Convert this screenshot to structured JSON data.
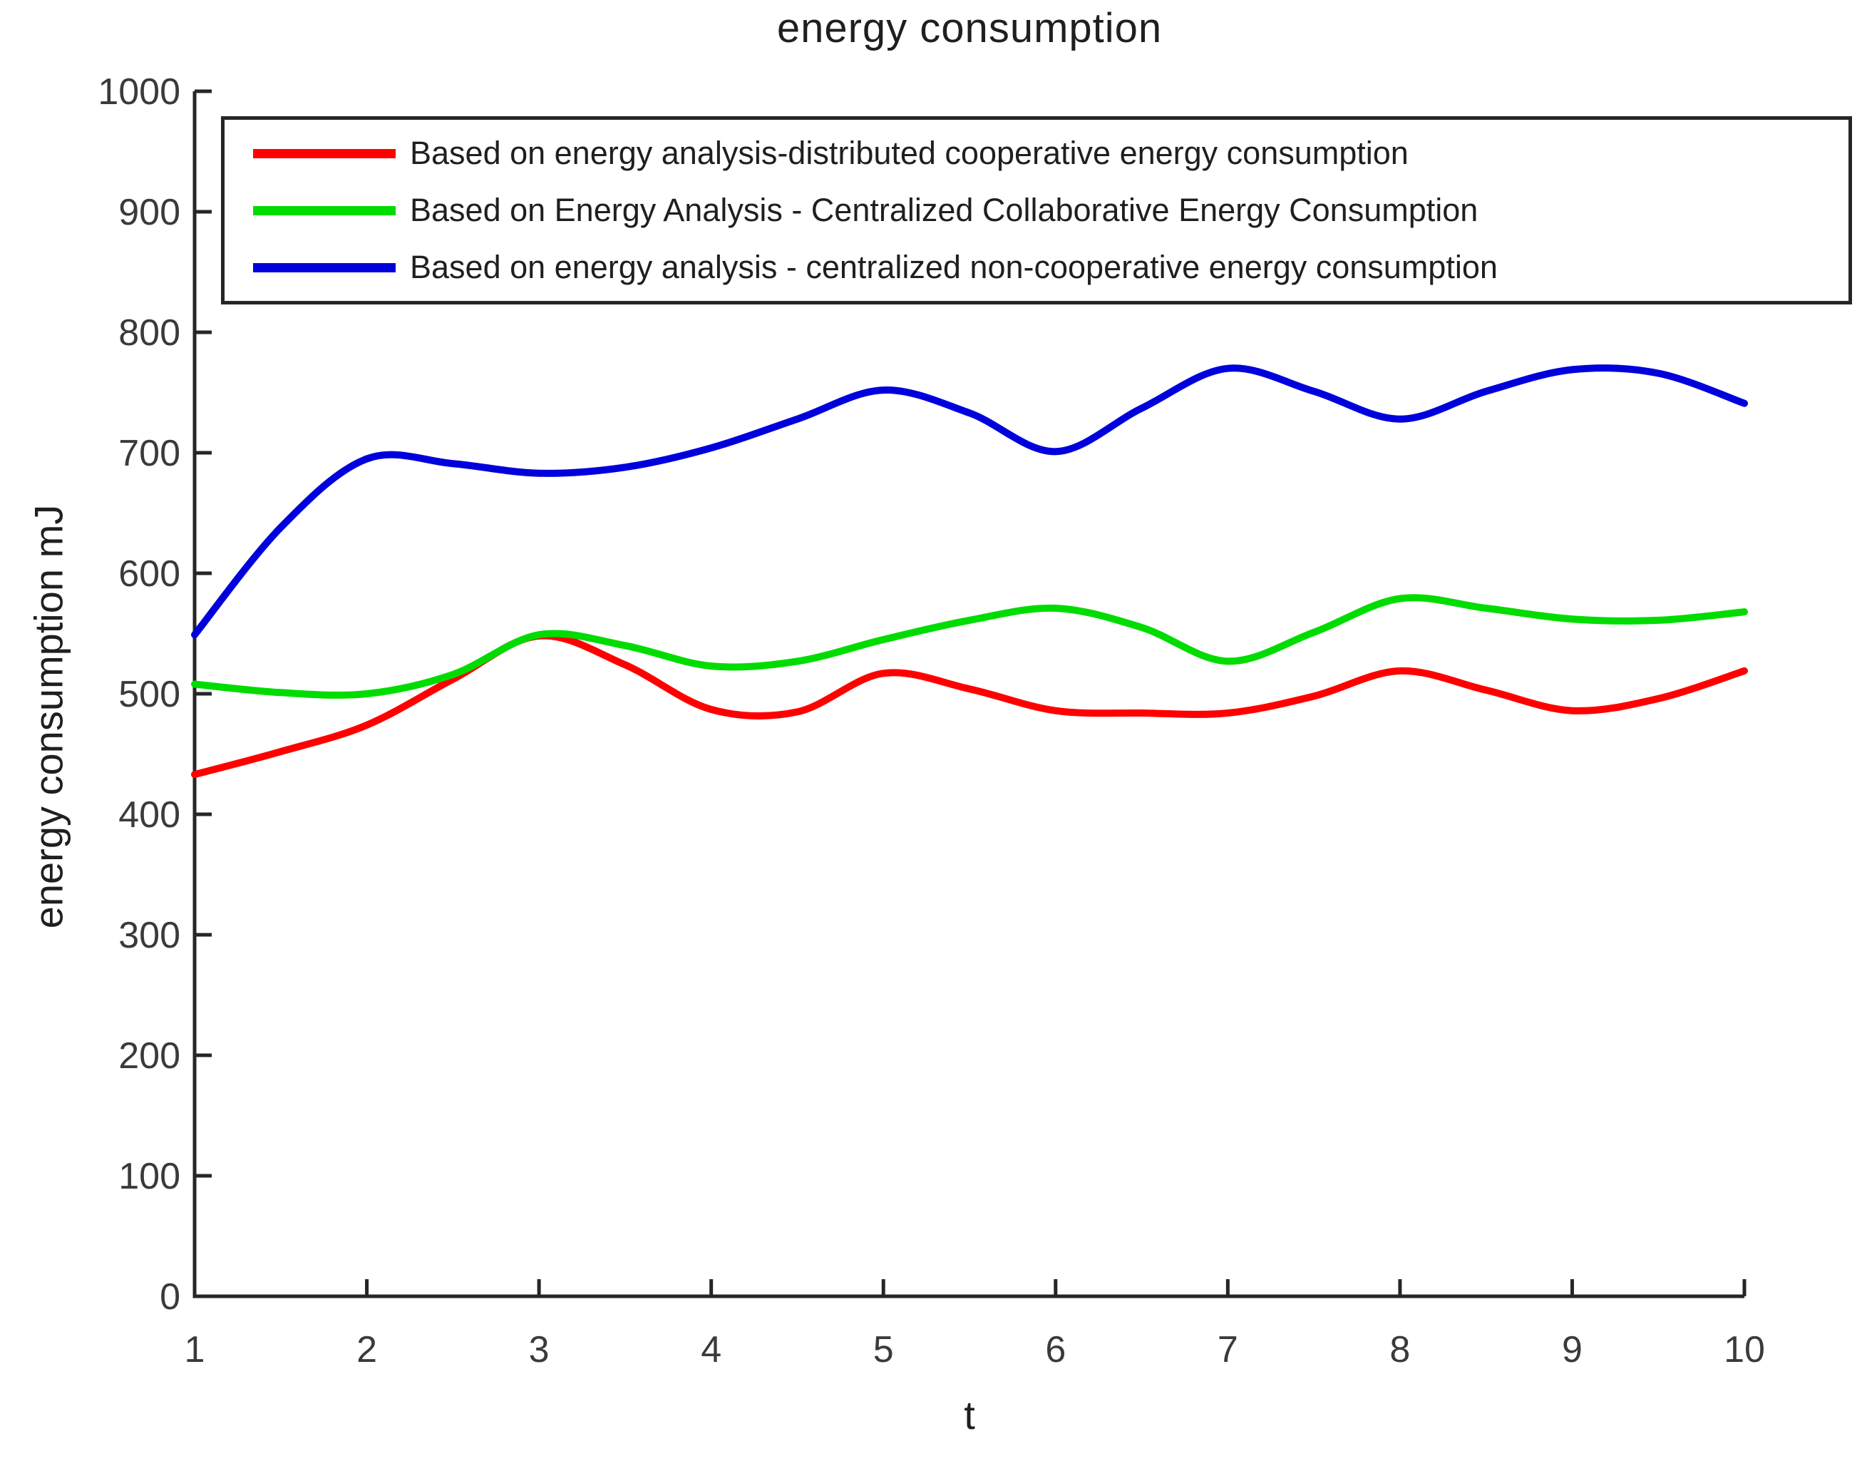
{
  "chart_data": {
    "type": "line",
    "title": "energy consumption",
    "xlabel": "t",
    "ylabel": "energy consumption mJ",
    "xlim": [
      1,
      10
    ],
    "ylim": [
      0,
      1000
    ],
    "x_ticks": [
      1,
      2,
      3,
      4,
      5,
      6,
      7,
      8,
      9,
      10
    ],
    "y_ticks": [
      0,
      100,
      200,
      300,
      400,
      500,
      600,
      700,
      800,
      900,
      1000
    ],
    "grid": false,
    "legend_position": "top-left-inside",
    "x": [
      1,
      1.5,
      2,
      2.5,
      3,
      3.5,
      4,
      4.5,
      5,
      5.5,
      6,
      6.5,
      7,
      7.5,
      8,
      8.5,
      9,
      9.5,
      10
    ],
    "series": [
      {
        "name": "Based on energy analysis-distributed cooperative energy consumption",
        "color": "#ff0000",
        "values": [
          433,
          452,
          474,
          512,
          548,
          524,
          487,
          485,
          517,
          504,
          486,
          484,
          484,
          498,
          519,
          503,
          486,
          496,
          519
        ]
      },
      {
        "name": "Based on Energy Analysis - Centralized Collaborative Energy Consumption",
        "color": "#00dc00",
        "values": [
          508,
          501,
          500,
          516,
          549,
          540,
          523,
          527,
          545,
          561,
          571,
          555,
          527,
          551,
          579,
          571,
          562,
          561,
          568
        ]
      },
      {
        "name": "Based on energy analysis - centralized non-cooperative energy consumption",
        "color": "#0000dd",
        "values": [
          549,
          638,
          695,
          691,
          683,
          688,
          704,
          728,
          752,
          733,
          701,
          737,
          770,
          751,
          728,
          751,
          769,
          766,
          741
        ]
      }
    ]
  },
  "colors": {
    "axis": "#262626",
    "tick_text": "#3a3a3a",
    "background": "#ffffff",
    "legend_border": "#262626"
  }
}
